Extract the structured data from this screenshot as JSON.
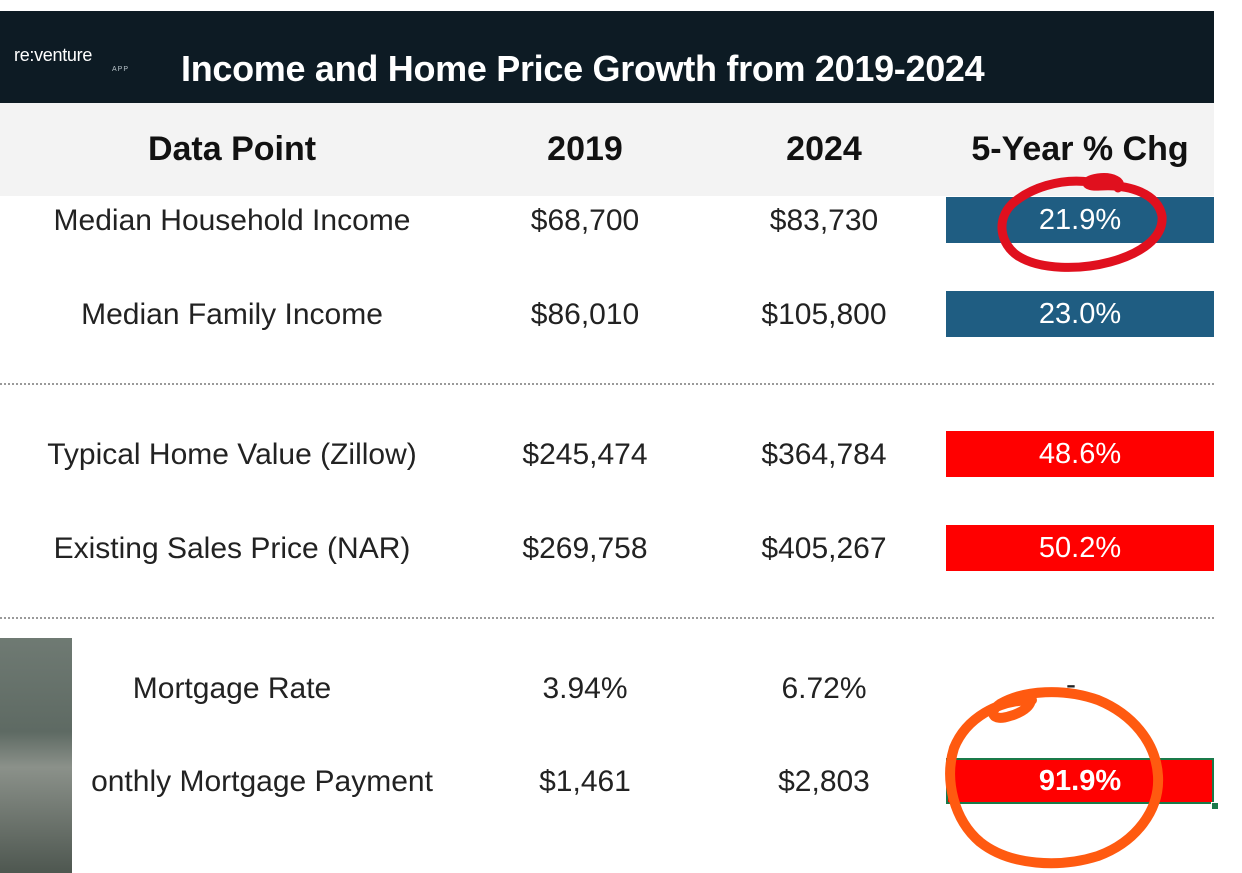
{
  "header": {
    "logo_text": "re:venture",
    "logo_sub": "APP",
    "title": "Income and Home Price Growth from 2019-2024"
  },
  "table": {
    "columns": [
      "Data Point",
      "2019",
      "2024",
      "5-Year % Chg"
    ],
    "rows": [
      {
        "label": "Median Household Income",
        "y2019": "$68,700",
        "y2024": "$83,730",
        "chg": "21.9%",
        "color": "#1f5d82"
      },
      {
        "label": "Median Family Income",
        "y2019": "$86,010",
        "y2024": "$105,800",
        "chg": "23.0%",
        "color": "#1f5d82"
      },
      {
        "label": "Typical Home Value (Zillow)",
        "y2019": "$245,474",
        "y2024": "$364,784",
        "chg": "48.6%",
        "color": "#ff0000"
      },
      {
        "label": "Existing Sales Price (NAR)",
        "y2019": "$269,758",
        "y2024": "$405,267",
        "chg": "50.2%",
        "color": "#ff0000"
      },
      {
        "label": "Mortgage Rate",
        "y2019": "3.94%",
        "y2024": "6.72%",
        "chg": "-"
      },
      {
        "label": "onthly Mortgage Payment",
        "y2019": "$1,461",
        "y2024": "$2,803",
        "chg": "91.9%",
        "color": "#ff0000"
      }
    ]
  },
  "colors": {
    "title_bar": "#0d1b24",
    "header_band": "#f3f3f3",
    "income_fill": "#1f5d82",
    "price_fill": "#ff0000",
    "annotation_red": "#e0101e",
    "annotation_orange": "#ff5a10"
  }
}
